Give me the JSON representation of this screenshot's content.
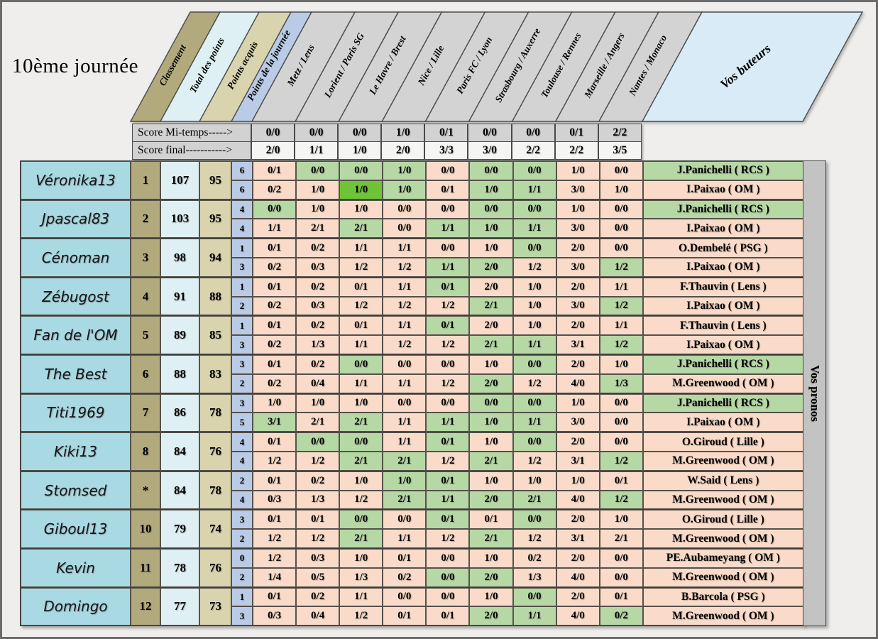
{
  "title": "10ème journée",
  "header": {
    "stat_columns": [
      "Classement",
      "Total des points",
      "Points acquis",
      "Points de la journée"
    ],
    "matches": [
      "Metz / Lens",
      "Lorient / Paris SG",
      "Le Havre / Brest",
      "Nice / Lille",
      "Paris FC / Lyon",
      "Strasbourg / Auxerre",
      "Toulouse / Rennes",
      "Marseille / Angers",
      "Nantes / Monaco"
    ],
    "buteurs_label": "Vos buteurs",
    "pronos_label": "Vos pronos"
  },
  "score_rows": {
    "halftime_label": "Score Mi-temps----->",
    "final_label": "Score final----------->",
    "halftime": [
      "0/0",
      "0/0",
      "0/0",
      "1/0",
      "0/1",
      "0/0",
      "0/0",
      "0/1",
      "2/2"
    ],
    "final": [
      "2/0",
      "1/1",
      "1/0",
      "2/0",
      "3/3",
      "3/0",
      "2/2",
      "2/2",
      "3/5"
    ]
  },
  "legend_colors": {
    "wrong": "#fadbc9",
    "correct": "#b6d8a5",
    "exact": "#6ec436"
  },
  "players": [
    {
      "name": "Véronika13",
      "rank": "1",
      "total": "107",
      "acquired": "95",
      "daily": [
        "6",
        "6"
      ],
      "halftime": [
        [
          "0/1",
          "x"
        ],
        [
          "0/0",
          "g"
        ],
        [
          "0/0",
          "g"
        ],
        [
          "1/0",
          "g"
        ],
        [
          "0/0",
          "x"
        ],
        [
          "0/0",
          "g"
        ],
        [
          "0/0",
          "g"
        ],
        [
          "1/0",
          "x"
        ],
        [
          "0/0",
          "x"
        ]
      ],
      "final": [
        [
          "0/2",
          "x"
        ],
        [
          "1/0",
          "x"
        ],
        [
          "1/0",
          "G"
        ],
        [
          "1/0",
          "g"
        ],
        [
          "0/1",
          "x"
        ],
        [
          "1/0",
          "g"
        ],
        [
          "1/1",
          "g"
        ],
        [
          "3/0",
          "x"
        ],
        [
          "1/0",
          "x"
        ]
      ],
      "scorers": [
        [
          "J.Panichelli ( RCS )",
          "g"
        ],
        [
          "I.Paixao ( OM )",
          "x"
        ]
      ]
    },
    {
      "name": "Jpascal83",
      "rank": "2",
      "total": "103",
      "acquired": "95",
      "daily": [
        "4",
        "4"
      ],
      "halftime": [
        [
          "0/0",
          "g"
        ],
        [
          "1/0",
          "x"
        ],
        [
          "1/0",
          "x"
        ],
        [
          "0/0",
          "x"
        ],
        [
          "0/0",
          "x"
        ],
        [
          "0/0",
          "g"
        ],
        [
          "0/0",
          "g"
        ],
        [
          "1/0",
          "x"
        ],
        [
          "0/0",
          "x"
        ]
      ],
      "final": [
        [
          "1/1",
          "x"
        ],
        [
          "2/1",
          "x"
        ],
        [
          "2/1",
          "g"
        ],
        [
          "0/0",
          "x"
        ],
        [
          "1/1",
          "g"
        ],
        [
          "1/0",
          "g"
        ],
        [
          "1/1",
          "g"
        ],
        [
          "3/0",
          "x"
        ],
        [
          "0/0",
          "x"
        ]
      ],
      "scorers": [
        [
          "J.Panichelli ( RCS )",
          "g"
        ],
        [
          "I.Paixao ( OM )",
          "x"
        ]
      ]
    },
    {
      "name": "Cénoman",
      "rank": "3",
      "total": "98",
      "acquired": "94",
      "daily": [
        "1",
        "3"
      ],
      "halftime": [
        [
          "0/1",
          "x"
        ],
        [
          "0/2",
          "x"
        ],
        [
          "1/1",
          "x"
        ],
        [
          "1/1",
          "x"
        ],
        [
          "0/0",
          "x"
        ],
        [
          "1/0",
          "x"
        ],
        [
          "0/0",
          "g"
        ],
        [
          "2/0",
          "x"
        ],
        [
          "0/0",
          "x"
        ]
      ],
      "final": [
        [
          "0/2",
          "x"
        ],
        [
          "0/3",
          "x"
        ],
        [
          "1/2",
          "x"
        ],
        [
          "1/2",
          "x"
        ],
        [
          "1/1",
          "g"
        ],
        [
          "2/0",
          "g"
        ],
        [
          "1/2",
          "x"
        ],
        [
          "3/0",
          "x"
        ],
        [
          "1/2",
          "g"
        ]
      ],
      "scorers": [
        [
          "O.Dembelé ( PSG )",
          "x"
        ],
        [
          "I.Paixao ( OM )",
          "x"
        ]
      ]
    },
    {
      "name": "Zébugost",
      "rank": "4",
      "total": "91",
      "acquired": "88",
      "daily": [
        "1",
        "2"
      ],
      "halftime": [
        [
          "0/1",
          "x"
        ],
        [
          "0/2",
          "x"
        ],
        [
          "0/1",
          "x"
        ],
        [
          "1/1",
          "x"
        ],
        [
          "0/1",
          "g"
        ],
        [
          "2/0",
          "x"
        ],
        [
          "1/0",
          "x"
        ],
        [
          "2/0",
          "x"
        ],
        [
          "1/1",
          "x"
        ]
      ],
      "final": [
        [
          "0/2",
          "x"
        ],
        [
          "0/3",
          "x"
        ],
        [
          "1/2",
          "x"
        ],
        [
          "1/2",
          "x"
        ],
        [
          "1/2",
          "x"
        ],
        [
          "2/1",
          "g"
        ],
        [
          "1/0",
          "x"
        ],
        [
          "3/0",
          "x"
        ],
        [
          "1/2",
          "g"
        ]
      ],
      "scorers": [
        [
          "F.Thauvin ( Lens )",
          "x"
        ],
        [
          "I.Paixao ( OM )",
          "x"
        ]
      ]
    },
    {
      "name": "Fan de l'OM",
      "rank": "5",
      "total": "89",
      "acquired": "85",
      "daily": [
        "1",
        "3"
      ],
      "halftime": [
        [
          "0/1",
          "x"
        ],
        [
          "0/2",
          "x"
        ],
        [
          "0/1",
          "x"
        ],
        [
          "1/1",
          "x"
        ],
        [
          "0/1",
          "g"
        ],
        [
          "2/0",
          "x"
        ],
        [
          "1/0",
          "x"
        ],
        [
          "2/0",
          "x"
        ],
        [
          "1/1",
          "x"
        ]
      ],
      "final": [
        [
          "0/2",
          "x"
        ],
        [
          "1/3",
          "x"
        ],
        [
          "1/1",
          "x"
        ],
        [
          "1/2",
          "x"
        ],
        [
          "1/2",
          "x"
        ],
        [
          "2/1",
          "g"
        ],
        [
          "1/1",
          "g"
        ],
        [
          "3/1",
          "x"
        ],
        [
          "1/2",
          "g"
        ]
      ],
      "scorers": [
        [
          "F.Thauvin ( Lens )",
          "x"
        ],
        [
          "I.Paixao ( OM )",
          "x"
        ]
      ]
    },
    {
      "name": "The Best",
      "rank": "6",
      "total": "88",
      "acquired": "83",
      "daily": [
        "3",
        "2"
      ],
      "halftime": [
        [
          "0/1",
          "x"
        ],
        [
          "0/2",
          "x"
        ],
        [
          "0/0",
          "g"
        ],
        [
          "0/0",
          "x"
        ],
        [
          "0/0",
          "x"
        ],
        [
          "1/0",
          "x"
        ],
        [
          "0/0",
          "g"
        ],
        [
          "2/0",
          "x"
        ],
        [
          "1/0",
          "x"
        ]
      ],
      "final": [
        [
          "0/2",
          "x"
        ],
        [
          "0/4",
          "x"
        ],
        [
          "1/1",
          "x"
        ],
        [
          "1/1",
          "x"
        ],
        [
          "1/2",
          "x"
        ],
        [
          "2/0",
          "g"
        ],
        [
          "1/2",
          "x"
        ],
        [
          "4/0",
          "x"
        ],
        [
          "1/3",
          "g"
        ]
      ],
      "scorers": [
        [
          "J.Panichelli ( RCS )",
          "g"
        ],
        [
          "M.Greenwood ( OM )",
          "x"
        ]
      ]
    },
    {
      "name": "Titi1969",
      "rank": "7",
      "total": "86",
      "acquired": "78",
      "daily": [
        "3",
        "5"
      ],
      "halftime": [
        [
          "1/0",
          "x"
        ],
        [
          "1/0",
          "x"
        ],
        [
          "1/0",
          "x"
        ],
        [
          "0/0",
          "x"
        ],
        [
          "0/0",
          "x"
        ],
        [
          "0/0",
          "g"
        ],
        [
          "0/0",
          "g"
        ],
        [
          "1/0",
          "x"
        ],
        [
          "0/0",
          "x"
        ]
      ],
      "final": [
        [
          "3/1",
          "g"
        ],
        [
          "2/1",
          "x"
        ],
        [
          "2/1",
          "g"
        ],
        [
          "1/1",
          "x"
        ],
        [
          "1/1",
          "g"
        ],
        [
          "1/0",
          "g"
        ],
        [
          "1/1",
          "g"
        ],
        [
          "3/0",
          "x"
        ],
        [
          "0/0",
          "x"
        ]
      ],
      "scorers": [
        [
          "J.Panichelli ( RCS )",
          "g"
        ],
        [
          "I.Paixao ( OM )",
          "x"
        ]
      ]
    },
    {
      "name": "Kiki13",
      "rank": "8",
      "total": "84",
      "acquired": "76",
      "daily": [
        "4",
        "4"
      ],
      "halftime": [
        [
          "0/1",
          "x"
        ],
        [
          "0/0",
          "g"
        ],
        [
          "0/0",
          "g"
        ],
        [
          "1/1",
          "x"
        ],
        [
          "0/1",
          "g"
        ],
        [
          "1/0",
          "x"
        ],
        [
          "0/0",
          "g"
        ],
        [
          "2/0",
          "x"
        ],
        [
          "0/0",
          "x"
        ]
      ],
      "final": [
        [
          "1/2",
          "x"
        ],
        [
          "1/2",
          "x"
        ],
        [
          "2/1",
          "g"
        ],
        [
          "2/1",
          "g"
        ],
        [
          "1/2",
          "x"
        ],
        [
          "2/1",
          "g"
        ],
        [
          "1/2",
          "x"
        ],
        [
          "3/1",
          "x"
        ],
        [
          "1/2",
          "g"
        ]
      ],
      "scorers": [
        [
          "O.Giroud ( Lille )",
          "x"
        ],
        [
          "M.Greenwood ( OM )",
          "x"
        ]
      ]
    },
    {
      "name": "Stomsed",
      "rank": "*",
      "total": "84",
      "acquired": "78",
      "daily": [
        "2",
        "4"
      ],
      "halftime": [
        [
          "0/1",
          "x"
        ],
        [
          "0/2",
          "x"
        ],
        [
          "1/0",
          "x"
        ],
        [
          "1/0",
          "g"
        ],
        [
          "0/1",
          "g"
        ],
        [
          "1/0",
          "x"
        ],
        [
          "1/0",
          "x"
        ],
        [
          "1/0",
          "x"
        ],
        [
          "0/1",
          "x"
        ]
      ],
      "final": [
        [
          "0/3",
          "x"
        ],
        [
          "1/3",
          "x"
        ],
        [
          "1/2",
          "x"
        ],
        [
          "2/1",
          "g"
        ],
        [
          "1/1",
          "g"
        ],
        [
          "2/0",
          "g"
        ],
        [
          "2/1",
          "g"
        ],
        [
          "4/0",
          "x"
        ],
        [
          "1/2",
          "g"
        ]
      ],
      "scorers": [
        [
          "W.Said ( Lens )",
          "x"
        ],
        [
          "M.Greenwood ( OM )",
          "x"
        ]
      ]
    },
    {
      "name": "Giboul13",
      "rank": "10",
      "total": "79",
      "acquired": "74",
      "daily": [
        "3",
        "2"
      ],
      "halftime": [
        [
          "0/1",
          "x"
        ],
        [
          "0/1",
          "x"
        ],
        [
          "0/0",
          "g"
        ],
        [
          "0/0",
          "x"
        ],
        [
          "0/1",
          "g"
        ],
        [
          "0/1",
          "x"
        ],
        [
          "0/0",
          "g"
        ],
        [
          "2/0",
          "x"
        ],
        [
          "1/0",
          "x"
        ]
      ],
      "final": [
        [
          "1/2",
          "x"
        ],
        [
          "1/2",
          "x"
        ],
        [
          "2/1",
          "g"
        ],
        [
          "1/1",
          "x"
        ],
        [
          "1/2",
          "x"
        ],
        [
          "2/1",
          "g"
        ],
        [
          "1/2",
          "x"
        ],
        [
          "3/1",
          "x"
        ],
        [
          "2/1",
          "x"
        ]
      ],
      "scorers": [
        [
          "O.Giroud ( Lille )",
          "x"
        ],
        [
          "M.Greenwood ( OM )",
          "x"
        ]
      ]
    },
    {
      "name": "Kevin",
      "rank": "11",
      "total": "78",
      "acquired": "76",
      "daily": [
        "0",
        "2"
      ],
      "halftime": [
        [
          "1/2",
          "x"
        ],
        [
          "0/3",
          "x"
        ],
        [
          "1/0",
          "x"
        ],
        [
          "0/1",
          "x"
        ],
        [
          "0/0",
          "x"
        ],
        [
          "1/0",
          "x"
        ],
        [
          "0/2",
          "x"
        ],
        [
          "2/0",
          "x"
        ],
        [
          "0/0",
          "x"
        ]
      ],
      "final": [
        [
          "1/4",
          "x"
        ],
        [
          "0/5",
          "x"
        ],
        [
          "1/3",
          "x"
        ],
        [
          "0/2",
          "x"
        ],
        [
          "0/0",
          "g"
        ],
        [
          "2/0",
          "g"
        ],
        [
          "1/3",
          "x"
        ],
        [
          "4/0",
          "x"
        ],
        [
          "0/0",
          "x"
        ]
      ],
      "scorers": [
        [
          "PE.Aubameyang ( OM )",
          "x"
        ],
        [
          "M.Greenwood ( OM )",
          "x"
        ]
      ]
    },
    {
      "name": "Domingo",
      "rank": "12",
      "total": "77",
      "acquired": "73",
      "daily": [
        "1",
        "3"
      ],
      "halftime": [
        [
          "0/1",
          "x"
        ],
        [
          "0/2",
          "x"
        ],
        [
          "1/1",
          "x"
        ],
        [
          "0/0",
          "x"
        ],
        [
          "0/0",
          "x"
        ],
        [
          "1/0",
          "x"
        ],
        [
          "0/0",
          "g"
        ],
        [
          "2/0",
          "x"
        ],
        [
          "0/1",
          "x"
        ]
      ],
      "final": [
        [
          "0/3",
          "x"
        ],
        [
          "0/4",
          "x"
        ],
        [
          "1/2",
          "x"
        ],
        [
          "0/1",
          "x"
        ],
        [
          "0/1",
          "x"
        ],
        [
          "2/0",
          "g"
        ],
        [
          "1/1",
          "g"
        ],
        [
          "4/0",
          "x"
        ],
        [
          "0/2",
          "g"
        ]
      ],
      "scorers": [
        [
          "B.Barcola ( PSG )",
          "x"
        ],
        [
          "M.Greenwood ( OM )",
          "x"
        ]
      ]
    }
  ]
}
